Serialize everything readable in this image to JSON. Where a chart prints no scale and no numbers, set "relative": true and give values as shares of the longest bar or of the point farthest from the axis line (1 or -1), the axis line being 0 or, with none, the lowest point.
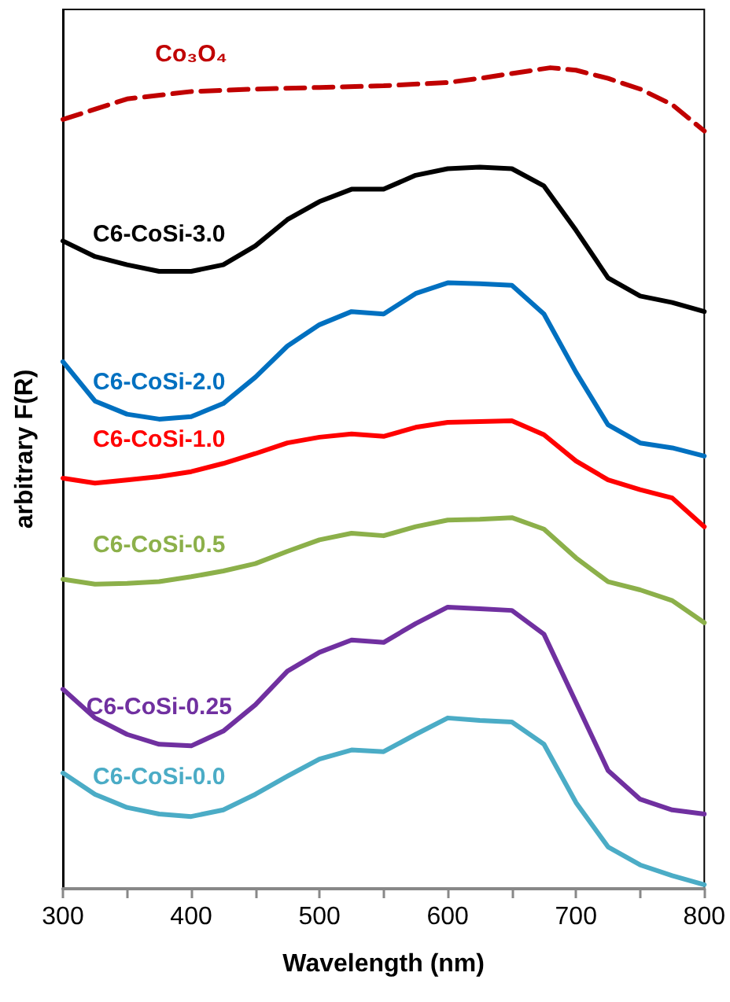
{
  "chart_data": {
    "type": "line",
    "xlabel": "Wavelength (nm)",
    "ylabel": "arbitrary F(R)",
    "relative": true,
    "tick_labels": "x",
    "grid": false,
    "legend": false,
    "marker": "none",
    "x": [
      300,
      325,
      350,
      375,
      400,
      425,
      450,
      475,
      500,
      525,
      550,
      575,
      600,
      625,
      650,
      675,
      700,
      725,
      750,
      775,
      800
    ],
    "xlim": [
      300,
      800
    ],
    "xticks": [
      300,
      {
        "value": 350,
        "label": null
      },
      400,
      {
        "value": 450,
        "label": null
      },
      500,
      {
        "value": 550,
        "label": null
      },
      600,
      {
        "value": 650,
        "label": null
      },
      700,
      {
        "value": 750,
        "label": null
      },
      800
    ],
    "series": [
      {
        "name": "Co₃O₄",
        "color": "#c00000",
        "line_style": "dashed",
        "x": [
          300,
          350,
          400,
          450,
          500,
          550,
          600,
          625,
          650,
          680,
          700,
          725,
          750,
          775,
          800
        ],
        "values": [
          0.937,
          0.962,
          0.971,
          0.974,
          0.976,
          0.978,
          0.982,
          0.987,
          0.993,
          1.0,
          0.997,
          0.987,
          0.974,
          0.955,
          0.923
        ]
      },
      {
        "name": "C6-CoSi-3.0",
        "color": "#000000",
        "line_style": "solid",
        "values": [
          0.789,
          0.77,
          0.76,
          0.752,
          0.752,
          0.76,
          0.783,
          0.815,
          0.837,
          0.852,
          0.852,
          0.869,
          0.877,
          0.879,
          0.877,
          0.856,
          0.802,
          0.744,
          0.722,
          0.714,
          0.703
        ]
      },
      {
        "name": "C6-CoSi-2.0",
        "color": "#0070c0",
        "line_style": "solid",
        "values": [
          0.642,
          0.594,
          0.578,
          0.572,
          0.575,
          0.591,
          0.623,
          0.661,
          0.687,
          0.703,
          0.7,
          0.725,
          0.738,
          0.737,
          0.735,
          0.7,
          0.629,
          0.565,
          0.543,
          0.537,
          0.527
        ]
      },
      {
        "name": "C6-CoSi-1.0",
        "color": "#ff0000",
        "line_style": "solid",
        "values": [
          0.5,
          0.494,
          0.498,
          0.502,
          0.508,
          0.518,
          0.53,
          0.543,
          0.55,
          0.554,
          0.551,
          0.562,
          0.568,
          0.569,
          0.57,
          0.553,
          0.521,
          0.498,
          0.486,
          0.476,
          0.441
        ]
      },
      {
        "name": "C6-CoSi-0.5",
        "color": "#8cb04a",
        "line_style": "solid",
        "values": [
          0.377,
          0.371,
          0.372,
          0.374,
          0.38,
          0.387,
          0.396,
          0.411,
          0.425,
          0.433,
          0.43,
          0.441,
          0.449,
          0.45,
          0.452,
          0.438,
          0.403,
          0.374,
          0.364,
          0.351,
          0.324
        ]
      },
      {
        "name": "C6-CoSi-0.25",
        "color": "#7030a0",
        "line_style": "solid",
        "values": [
          0.243,
          0.208,
          0.188,
          0.176,
          0.174,
          0.192,
          0.224,
          0.265,
          0.288,
          0.303,
          0.3,
          0.323,
          0.343,
          0.341,
          0.339,
          0.31,
          0.227,
          0.144,
          0.109,
          0.096,
          0.091
        ]
      },
      {
        "name": "C6-CoSi-0.0",
        "color": "#4bacc6",
        "line_style": "solid",
        "values": [
          0.141,
          0.115,
          0.099,
          0.091,
          0.088,
          0.096,
          0.115,
          0.137,
          0.158,
          0.169,
          0.167,
          0.188,
          0.208,
          0.205,
          0.203,
          0.176,
          0.105,
          0.051,
          0.029,
          0.016,
          0.005
        ]
      }
    ]
  }
}
